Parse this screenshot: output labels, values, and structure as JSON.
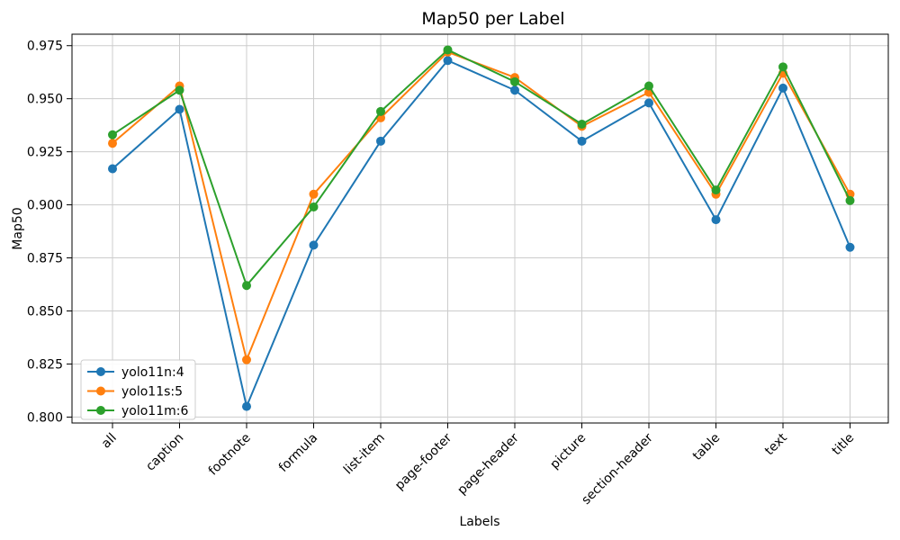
{
  "chart_data": {
    "type": "line",
    "title": "Map50 per Label",
    "xlabel": "Labels",
    "ylabel": "Map50",
    "categories": [
      "all",
      "caption",
      "footnote",
      "formula",
      "list-item",
      "page-footer",
      "page-header",
      "picture",
      "section-header",
      "table",
      "text",
      "title"
    ],
    "series": [
      {
        "name": "yolo11n:4",
        "color": "#1f77b4",
        "values": [
          0.917,
          0.945,
          0.805,
          0.881,
          0.93,
          0.968,
          0.954,
          0.93,
          0.948,
          0.893,
          0.955,
          0.88
        ]
      },
      {
        "name": "yolo11s:5",
        "color": "#ff7f0e",
        "values": [
          0.929,
          0.956,
          0.827,
          0.905,
          0.941,
          0.972,
          0.96,
          0.937,
          0.953,
          0.905,
          0.962,
          0.905
        ]
      },
      {
        "name": "yolo11m:6",
        "color": "#2ca02c",
        "values": [
          0.933,
          0.954,
          0.862,
          0.899,
          0.944,
          0.973,
          0.958,
          0.938,
          0.956,
          0.907,
          0.965,
          0.902
        ]
      }
    ],
    "y_ticks": [
      0.8,
      0.825,
      0.85,
      0.875,
      0.9,
      0.925,
      0.95,
      0.975
    ],
    "ylim": [
      0.7972,
      0.9804
    ],
    "grid": true,
    "legend_position": "lower left",
    "x_tick_rotation": 45
  }
}
